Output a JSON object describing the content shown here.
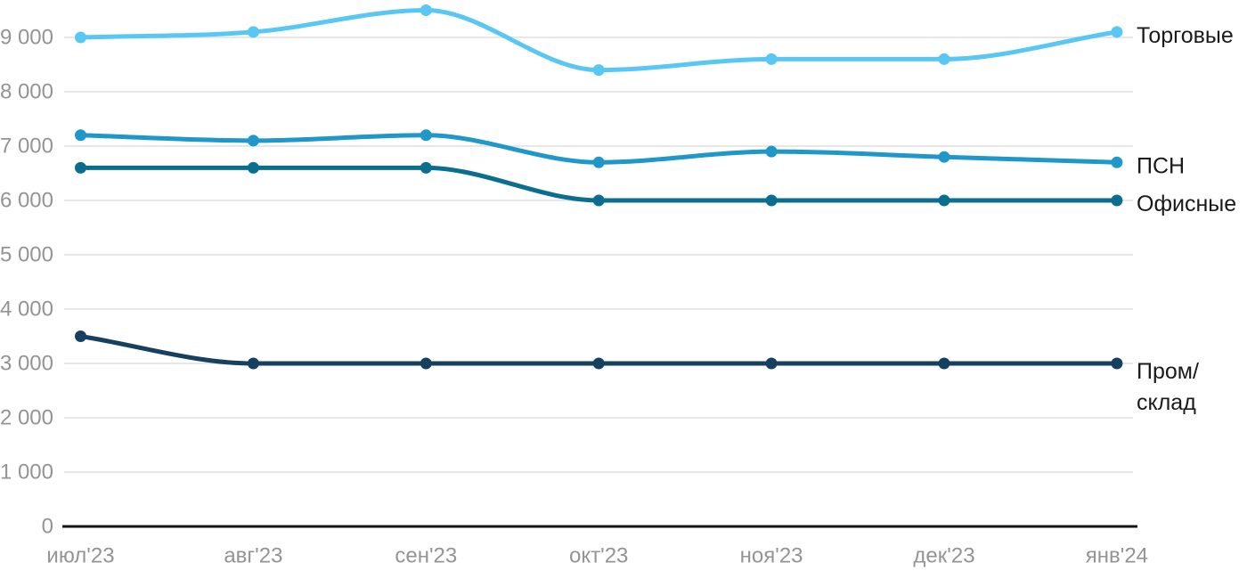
{
  "chart_data": {
    "type": "line",
    "title": "",
    "xlabel": "",
    "ylabel": "",
    "x": [
      "июл'23",
      "авг'23",
      "сен'23",
      "окт'23",
      "ноя'23",
      "дек'23",
      "янв'24"
    ],
    "series": [
      {
        "name": "Торговые",
        "label_lines": [
          "Торговые"
        ],
        "color": "#59C7F4",
        "values": [
          9000,
          9100,
          9500,
          8400,
          8600,
          8600,
          9100
        ]
      },
      {
        "name": "ПСН",
        "label_lines": [
          "ПСН"
        ],
        "color": "#2097C9",
        "values": [
          7200,
          7100,
          7200,
          6700,
          6900,
          6800,
          6700
        ]
      },
      {
        "name": "Офисные",
        "label_lines": [
          "Офисные"
        ],
        "color": "#0B6E91",
        "values": [
          6600,
          6600,
          6600,
          6000,
          6000,
          6000,
          6000
        ]
      },
      {
        "name": "Пром/склад",
        "label_lines": [
          "Пром/",
          "склад"
        ],
        "color": "#15405F",
        "values": [
          3500,
          3000,
          3000,
          3000,
          3000,
          3000,
          3000
        ]
      }
    ],
    "y_ticks": [
      {
        "value": 0,
        "label": "0"
      },
      {
        "value": 1000,
        "label": "1 000"
      },
      {
        "value": 2000,
        "label": "2 000"
      },
      {
        "value": 3000,
        "label": "3 000"
      },
      {
        "value": 4000,
        "label": "4 000"
      },
      {
        "value": 5000,
        "label": "5 000"
      },
      {
        "value": 6000,
        "label": "6 000"
      },
      {
        "value": 7000,
        "label": "7 000"
      },
      {
        "value": 8000,
        "label": "8 000"
      },
      {
        "value": 9000,
        "label": "9 000"
      }
    ],
    "ylim": [
      0,
      9500
    ],
    "grid": true,
    "legend_position": "right-of-line-end"
  },
  "colors": {
    "background": "#FFFFFF",
    "gridline": "#E7E7E7",
    "axis_line": "#141414",
    "tick_text": "#949494",
    "label_text": "#1A1A1A"
  }
}
